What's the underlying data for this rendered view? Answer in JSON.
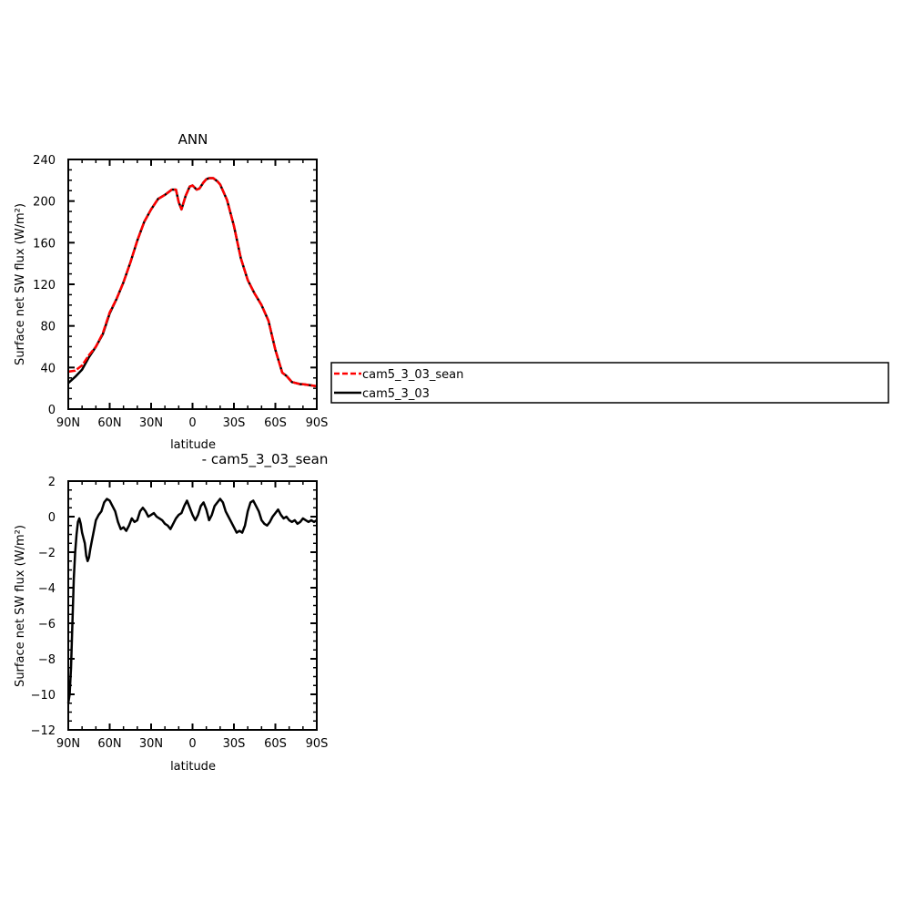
{
  "chart_data": [
    {
      "type": "line",
      "title": "ANN",
      "xlabel": "latitude",
      "ylabel": "Surface net SW flux (W/m²)",
      "xlim": [
        90,
        -90
      ],
      "ylim": [
        0,
        240
      ],
      "x_ticks": [
        90,
        60,
        30,
        0,
        -30,
        -60,
        -90
      ],
      "x_tick_labels": [
        "90N",
        "60N",
        "30N",
        "0",
        "30S",
        "60S",
        "90S"
      ],
      "y_ticks": [
        0,
        40,
        80,
        120,
        160,
        200,
        240
      ],
      "y_tick_labels": [
        "0",
        "40",
        "80",
        "120",
        "160",
        "200",
        "240"
      ],
      "grid": false,
      "legend_position": "right",
      "x": [
        90,
        85,
        80,
        75,
        70,
        65,
        60,
        55,
        50,
        45,
        40,
        35,
        30,
        25,
        20,
        15,
        12,
        10,
        8,
        5,
        2,
        0,
        -3,
        -5,
        -8,
        -10,
        -12,
        -15,
        -18,
        -20,
        -25,
        -30,
        -35,
        -40,
        -45,
        -50,
        -55,
        -60,
        -65,
        -68,
        -70,
        -72,
        -75,
        -78,
        -80,
        -85,
        -90
      ],
      "series": [
        {
          "name": "cam5_3_03_sean",
          "color": "#ff0000",
          "dashed": true,
          "values": [
            36,
            37,
            42,
            52,
            60,
            73,
            93,
            106,
            122,
            141,
            162,
            180,
            192,
            202,
            206,
            211,
            211,
            199,
            192,
            205,
            214,
            215,
            211,
            212,
            218,
            221,
            222,
            222,
            219,
            216,
            201,
            176,
            145,
            124,
            111,
            100,
            85,
            57,
            35,
            32,
            29,
            26,
            25,
            24,
            24,
            23,
            22
          ]
        },
        {
          "name": "cam5_3_03",
          "color": "#000000",
          "dashed": false,
          "values": [
            25,
            31,
            38,
            50,
            60,
            72,
            92,
            106,
            122,
            141,
            162,
            180,
            192,
            202,
            206,
            211,
            211,
            199,
            192,
            205,
            214,
            215,
            211,
            212,
            218,
            221,
            222,
            222,
            219,
            216,
            201,
            176,
            145,
            124,
            111,
            100,
            85,
            57,
            35,
            32,
            29,
            26,
            25,
            24,
            24,
            23,
            22
          ]
        }
      ]
    },
    {
      "type": "line",
      "title": "- cam5_3_03_sean",
      "xlabel": "latitude",
      "ylabel": "Surface net SW flux (W/m²)",
      "xlim": [
        90,
        -90
      ],
      "ylim": [
        -12,
        2
      ],
      "x_ticks": [
        90,
        60,
        30,
        0,
        -30,
        -60,
        -90
      ],
      "x_tick_labels": [
        "90N",
        "60N",
        "30N",
        "0",
        "30S",
        "60S",
        "90S"
      ],
      "y_ticks": [
        2,
        0,
        -2,
        -4,
        -6,
        -8,
        -10,
        -12
      ],
      "y_tick_labels": [
        "2",
        "0",
        "−2",
        "−4",
        "−6",
        "−8",
        "−10",
        "−12"
      ],
      "grid": false,
      "x": [
        90,
        89,
        88,
        87,
        86,
        85,
        84,
        83,
        82,
        81,
        80,
        79,
        78,
        77,
        76,
        75,
        74,
        73,
        72,
        71,
        70,
        68,
        66,
        64,
        62,
        60,
        58,
        56,
        54,
        52,
        50,
        48,
        46,
        44,
        42,
        40,
        38,
        36,
        34,
        32,
        30,
        28,
        26,
        24,
        22,
        20,
        18,
        16,
        14,
        12,
        10,
        8,
        6,
        4,
        2,
        0,
        -2,
        -4,
        -6,
        -8,
        -10,
        -12,
        -14,
        -16,
        -18,
        -20,
        -22,
        -24,
        -26,
        -28,
        -30,
        -32,
        -34,
        -36,
        -38,
        -40,
        -42,
        -44,
        -46,
        -48,
        -50,
        -52,
        -54,
        -56,
        -58,
        -60,
        -62,
        -64,
        -66,
        -68,
        -70,
        -72,
        -74,
        -76,
        -78,
        -80,
        -82,
        -84,
        -86,
        -88,
        -90
      ],
      "series": [
        {
          "name": "",
          "color": "#000000",
          "values": [
            -10.5,
            -10.0,
            -8.5,
            -6.0,
            -3.5,
            -2.0,
            -1.0,
            -0.3,
            -0.1,
            -0.4,
            -0.9,
            -1.2,
            -1.5,
            -2.2,
            -2.5,
            -2.3,
            -1.8,
            -1.4,
            -1.0,
            -0.6,
            -0.2,
            0.1,
            0.3,
            0.8,
            1.0,
            0.9,
            0.6,
            0.3,
            -0.3,
            -0.7,
            -0.6,
            -0.8,
            -0.5,
            -0.1,
            -0.3,
            -0.2,
            0.3,
            0.5,
            0.3,
            0.0,
            0.1,
            0.2,
            0.0,
            -0.1,
            -0.2,
            -0.4,
            -0.5,
            -0.7,
            -0.4,
            -0.1,
            0.1,
            0.2,
            0.6,
            0.9,
            0.5,
            0.1,
            -0.2,
            0.1,
            0.6,
            0.8,
            0.4,
            -0.2,
            0.1,
            0.6,
            0.8,
            1.0,
            0.8,
            0.3,
            0.0,
            -0.3,
            -0.6,
            -0.9,
            -0.8,
            -0.9,
            -0.5,
            0.3,
            0.8,
            0.9,
            0.6,
            0.3,
            -0.2,
            -0.4,
            -0.5,
            -0.3,
            0.0,
            0.2,
            0.4,
            0.1,
            -0.1,
            0.0,
            -0.2,
            -0.3,
            -0.2,
            -0.4,
            -0.3,
            -0.1,
            -0.2,
            -0.3,
            -0.2,
            -0.3,
            -0.2
          ]
        }
      ]
    }
  ]
}
